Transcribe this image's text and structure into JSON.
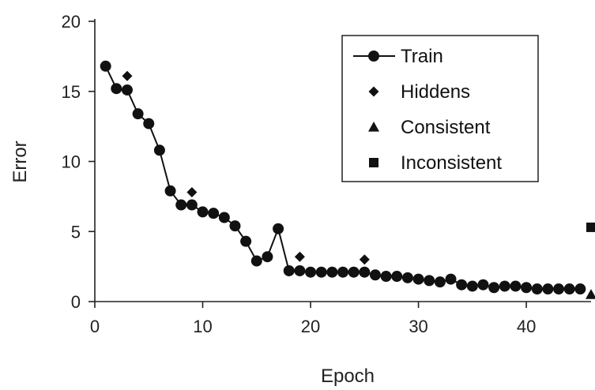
{
  "chart_data": {
    "type": "scatter",
    "title": "",
    "xlabel": "Epoch",
    "ylabel": "Error",
    "xlim": [
      0,
      46
    ],
    "ylim": [
      0,
      20
    ],
    "xticks": [
      0,
      10,
      20,
      30,
      40
    ],
    "yticks": [
      0,
      5,
      10,
      15,
      20
    ],
    "x_tick_labels": [
      "0",
      "10",
      "20",
      "30",
      "40"
    ],
    "y_tick_labels": [
      "0",
      "5",
      "10",
      "15",
      "20"
    ],
    "grid": false,
    "legend_position": "top-right",
    "series": [
      {
        "name": "Train",
        "marker": "circle",
        "line": true,
        "color": "#111111",
        "points": [
          [
            1,
            16.8
          ],
          [
            2,
            15.2
          ],
          [
            3,
            15.1
          ],
          [
            4,
            13.4
          ],
          [
            5,
            12.7
          ],
          [
            6,
            10.8
          ],
          [
            7,
            7.9
          ],
          [
            8,
            6.9
          ],
          [
            9,
            6.9
          ],
          [
            10,
            6.4
          ],
          [
            11,
            6.3
          ],
          [
            12,
            6.0
          ],
          [
            13,
            5.4
          ],
          [
            14,
            4.3
          ],
          [
            15,
            2.9
          ],
          [
            16,
            3.2
          ],
          [
            17,
            5.2
          ],
          [
            18,
            2.2
          ],
          [
            19,
            2.2
          ],
          [
            20,
            2.1
          ],
          [
            21,
            2.1
          ],
          [
            22,
            2.1
          ],
          [
            23,
            2.1
          ],
          [
            24,
            2.1
          ],
          [
            25,
            2.1
          ],
          [
            26,
            1.9
          ],
          [
            27,
            1.8
          ],
          [
            28,
            1.8
          ],
          [
            29,
            1.7
          ],
          [
            30,
            1.6
          ],
          [
            31,
            1.5
          ],
          [
            32,
            1.4
          ],
          [
            33,
            1.6
          ],
          [
            34,
            1.2
          ],
          [
            35,
            1.1
          ],
          [
            36,
            1.2
          ],
          [
            37,
            1.0
          ],
          [
            38,
            1.1
          ],
          [
            39,
            1.1
          ],
          [
            40,
            1.0
          ],
          [
            41,
            0.9
          ],
          [
            42,
            0.9
          ],
          [
            43,
            0.9
          ],
          [
            44,
            0.9
          ],
          [
            45,
            0.9
          ]
        ]
      },
      {
        "name": "Hiddens",
        "marker": "diamond",
        "line": false,
        "color": "#111111",
        "points": [
          [
            3,
            16.1
          ],
          [
            9,
            7.8
          ],
          [
            19,
            3.2
          ],
          [
            25,
            3.0
          ]
        ]
      },
      {
        "name": "Consistent",
        "marker": "triangle",
        "line": false,
        "color": "#111111",
        "points": [
          [
            46,
            0.5
          ]
        ]
      },
      {
        "name": "Inconsistent",
        "marker": "square",
        "line": false,
        "color": "#111111",
        "points": [
          [
            46,
            5.3
          ]
        ]
      }
    ]
  }
}
